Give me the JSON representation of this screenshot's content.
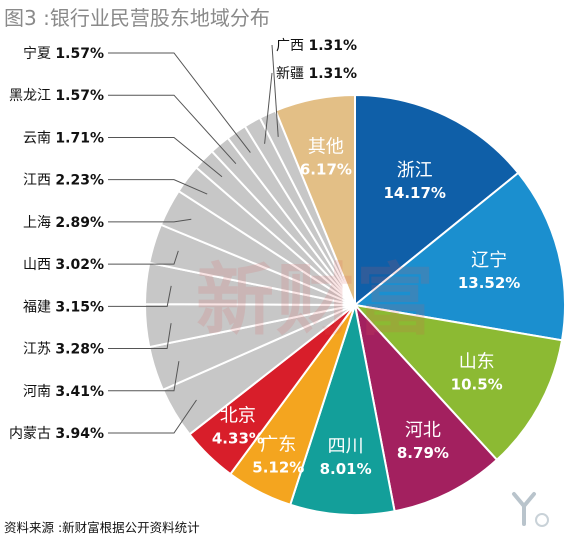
{
  "figure_title": "图3 :银行业民营股东地域分布",
  "source_note": "资料来源 :新财富根据公开资料统计",
  "watermark_text": "新财富",
  "chart_data": {
    "type": "pie",
    "title": "图3 :银行业民营股东地域分布",
    "unit": "%",
    "slices": [
      {
        "label": "浙江",
        "value": 14.17,
        "value_text": "14.17%",
        "color": "#0f5fa8",
        "label_placement": "inside"
      },
      {
        "label": "辽宁",
        "value": 13.52,
        "value_text": "13.52%",
        "color": "#1b8fcf",
        "label_placement": "inside"
      },
      {
        "label": "山东",
        "value": 10.5,
        "value_text": "10.5%",
        "color": "#8cba33",
        "label_placement": "inside"
      },
      {
        "label": "河北",
        "value": 8.79,
        "value_text": "8.79%",
        "color": "#a3205f",
        "label_placement": "inside"
      },
      {
        "label": "四川",
        "value": 8.01,
        "value_text": "8.01%",
        "color": "#139f9a",
        "label_placement": "inside"
      },
      {
        "label": "广东",
        "value": 5.12,
        "value_text": "5.12%",
        "color": "#f4a51f",
        "label_placement": "inside"
      },
      {
        "label": "北京",
        "value": 4.33,
        "value_text": "4.33%",
        "color": "#d81e2a",
        "label_placement": "inside"
      },
      {
        "label": "内蒙古",
        "value": 3.94,
        "value_text": "3.94%",
        "color": "#c7c7c7",
        "label_placement": "outside"
      },
      {
        "label": "河南",
        "value": 3.41,
        "value_text": "3.41%",
        "color": "#c7c7c7",
        "label_placement": "outside"
      },
      {
        "label": "江苏",
        "value": 3.28,
        "value_text": "3.28%",
        "color": "#c7c7c7",
        "label_placement": "outside"
      },
      {
        "label": "福建",
        "value": 3.15,
        "value_text": "3.15%",
        "color": "#c7c7c7",
        "label_placement": "outside"
      },
      {
        "label": "山西",
        "value": 3.02,
        "value_text": "3.02%",
        "color": "#c7c7c7",
        "label_placement": "outside"
      },
      {
        "label": "上海",
        "value": 2.89,
        "value_text": "2.89%",
        "color": "#c7c7c7",
        "label_placement": "outside"
      },
      {
        "label": "江西",
        "value": 2.23,
        "value_text": "2.23%",
        "color": "#c7c7c7",
        "label_placement": "outside"
      },
      {
        "label": "云南",
        "value": 1.71,
        "value_text": "1.71%",
        "color": "#c7c7c7",
        "label_placement": "outside"
      },
      {
        "label": "黑龙江",
        "value": 1.57,
        "value_text": "1.57%",
        "color": "#c7c7c7",
        "label_placement": "outside"
      },
      {
        "label": "宁夏",
        "value": 1.57,
        "value_text": "1.57%",
        "color": "#c7c7c7",
        "label_placement": "outside"
      },
      {
        "label": "新疆",
        "value": 1.31,
        "value_text": "1.31%",
        "color": "#c7c7c7",
        "label_placement": "outside"
      },
      {
        "label": "广西",
        "value": 1.31,
        "value_text": "1.31%",
        "color": "#c7c7c7",
        "label_placement": "outside"
      },
      {
        "label": "其他",
        "value": 6.17,
        "value_text": "6.17%",
        "color": "#e3bf86",
        "label_placement": "inside"
      }
    ],
    "start_angle_deg": 0,
    "direction": "clockwise",
    "legend": "none"
  }
}
